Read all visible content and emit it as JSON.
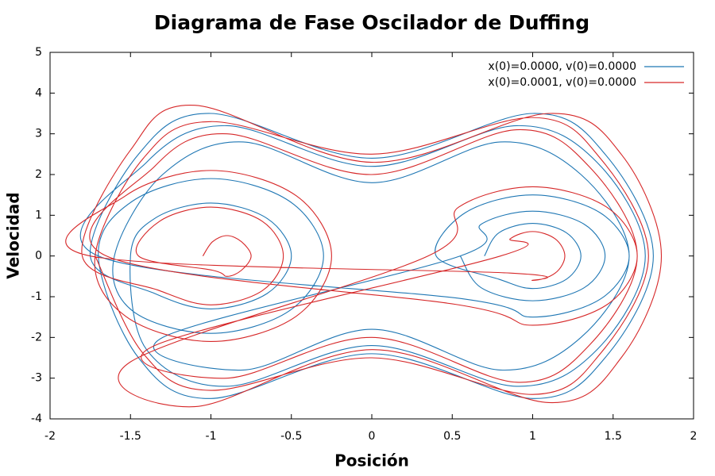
{
  "chart_data": {
    "type": "line",
    "title": "Diagrama de Fase Oscilador de Duffing",
    "x_label": "Posición",
    "y_label": "Velocidad",
    "xlim": [
      -2,
      2
    ],
    "ylim": [
      -4,
      5
    ],
    "xticks": [
      -2,
      -1.5,
      -1,
      -0.5,
      0,
      0.5,
      1,
      1.5,
      2
    ],
    "yticks": [
      -4,
      -3,
      -2,
      -1,
      0,
      1,
      2,
      3,
      4,
      5
    ],
    "grid": false,
    "legend": "upper right",
    "series": [
      {
        "name": "x(0)=0.0000, v(0)=0.0000",
        "color": "#1f77b4",
        "x": [
          0.7,
          0.79,
          1,
          1.21,
          1.3,
          1.21,
          1,
          0.79,
          0.4,
          0.58,
          1,
          1.42,
          1.6,
          1.42,
          1,
          0.58,
          -1.7,
          -1.4,
          -0.9,
          0,
          0.9,
          1.4,
          1.7,
          1.4,
          0.9,
          0,
          -0.9,
          -1.4,
          -1.5,
          -1.35,
          -1,
          -0.65,
          -0.5,
          -0.65,
          -1,
          -1.35,
          -1.75,
          -1.45,
          -1,
          0,
          1,
          1.45,
          1.75,
          1.45,
          1,
          0,
          -1,
          -1.45,
          -1.7,
          -1.49,
          -1,
          -0.51,
          -0.3,
          -0.51,
          -1,
          -1.49,
          -1.6,
          -1.3,
          -0.8,
          0,
          0.8,
          1.3,
          1.6,
          1.3,
          0.8,
          0,
          -0.8,
          -1.3,
          0.55,
          0.68,
          1,
          1.32,
          1.45,
          1.32,
          1,
          0.68,
          0.55
        ],
        "values": [
          0,
          0.57,
          0.8,
          0.57,
          0,
          -0.57,
          -0.8,
          -0.57,
          0,
          1.06,
          1.5,
          1.06,
          0,
          -1.06,
          -1.5,
          -1.06,
          0,
          2.3,
          3.2,
          2.2,
          3.2,
          2.3,
          0,
          -2.3,
          -3.2,
          -2.2,
          -3.2,
          -2.3,
          0,
          0.92,
          1.3,
          0.92,
          0,
          -0.92,
          -1.3,
          -0.92,
          0,
          2.5,
          3.5,
          2.4,
          3.5,
          2.5,
          0,
          -2.5,
          -3.5,
          -2.4,
          -3.5,
          -2.5,
          0,
          1.34,
          1.9,
          1.34,
          0,
          -1.34,
          -1.9,
          -1.34,
          0,
          2,
          2.8,
          1.8,
          2.8,
          2,
          0,
          -2,
          -2.8,
          -1.8,
          -2.8,
          -2,
          0,
          0.78,
          1.1,
          0.78,
          0,
          -0.78,
          -1.1,
          -0.78,
          0
        ]
      },
      {
        "name": "x(0)=0.0001, v(0)=0.0000",
        "color": "#d62728",
        "x": [
          -1.05,
          -0.99,
          -0.9,
          -0.81,
          -0.75,
          -0.81,
          -0.9,
          -0.99,
          -1.45,
          -1.32,
          -1,
          -0.68,
          -0.55,
          -0.68,
          -1,
          -1.32,
          -1.8,
          -1.5,
          -1.1,
          0,
          1.1,
          1.55,
          1.8,
          1.55,
          1.1,
          0,
          -1.1,
          -1.5,
          0.35,
          0.54,
          1,
          1.46,
          1.65,
          1.46,
          1,
          0.54,
          -1.65,
          -1.35,
          -0.9,
          0,
          0.9,
          1.35,
          1.65,
          1.35,
          0.9,
          0,
          -0.9,
          -1.35,
          0.8,
          0.86,
          1,
          1.14,
          1.2,
          1.14,
          1,
          0.86,
          -1.75,
          -1.53,
          -1,
          -0.47,
          -0.25,
          -0.47,
          -1,
          -1.53,
          -1.72,
          -1.42,
          -1,
          0,
          1,
          1.42,
          1.72,
          1.42,
          1,
          0,
          -1,
          -1.42,
          -1.72
        ],
        "values": [
          0,
          0.35,
          0.5,
          0.35,
          0,
          -0.35,
          -0.5,
          -0.35,
          0,
          0.85,
          1.2,
          0.85,
          0,
          -0.85,
          -1.2,
          -0.85,
          0,
          2.6,
          3.7,
          2.3,
          3.5,
          2.5,
          0,
          -2.5,
          -3.6,
          -2.3,
          -3.7,
          -2.6,
          0,
          1.2,
          1.7,
          1.2,
          0,
          -1.2,
          -1.7,
          -1.2,
          0,
          2.2,
          3,
          2,
          3.1,
          2.2,
          0,
          -2.2,
          -3.1,
          -2,
          -3,
          -2.2,
          0,
          0.42,
          0.6,
          0.42,
          0,
          -0.42,
          -0.6,
          -0.42,
          0,
          1.48,
          2.1,
          1.48,
          0,
          -1.48,
          -2.1,
          -1.48,
          0,
          2.4,
          3.3,
          2.5,
          3.4,
          2.4,
          0,
          -2.4,
          -3.4,
          -2.5,
          -3.3,
          -2.4,
          0
        ]
      }
    ]
  }
}
